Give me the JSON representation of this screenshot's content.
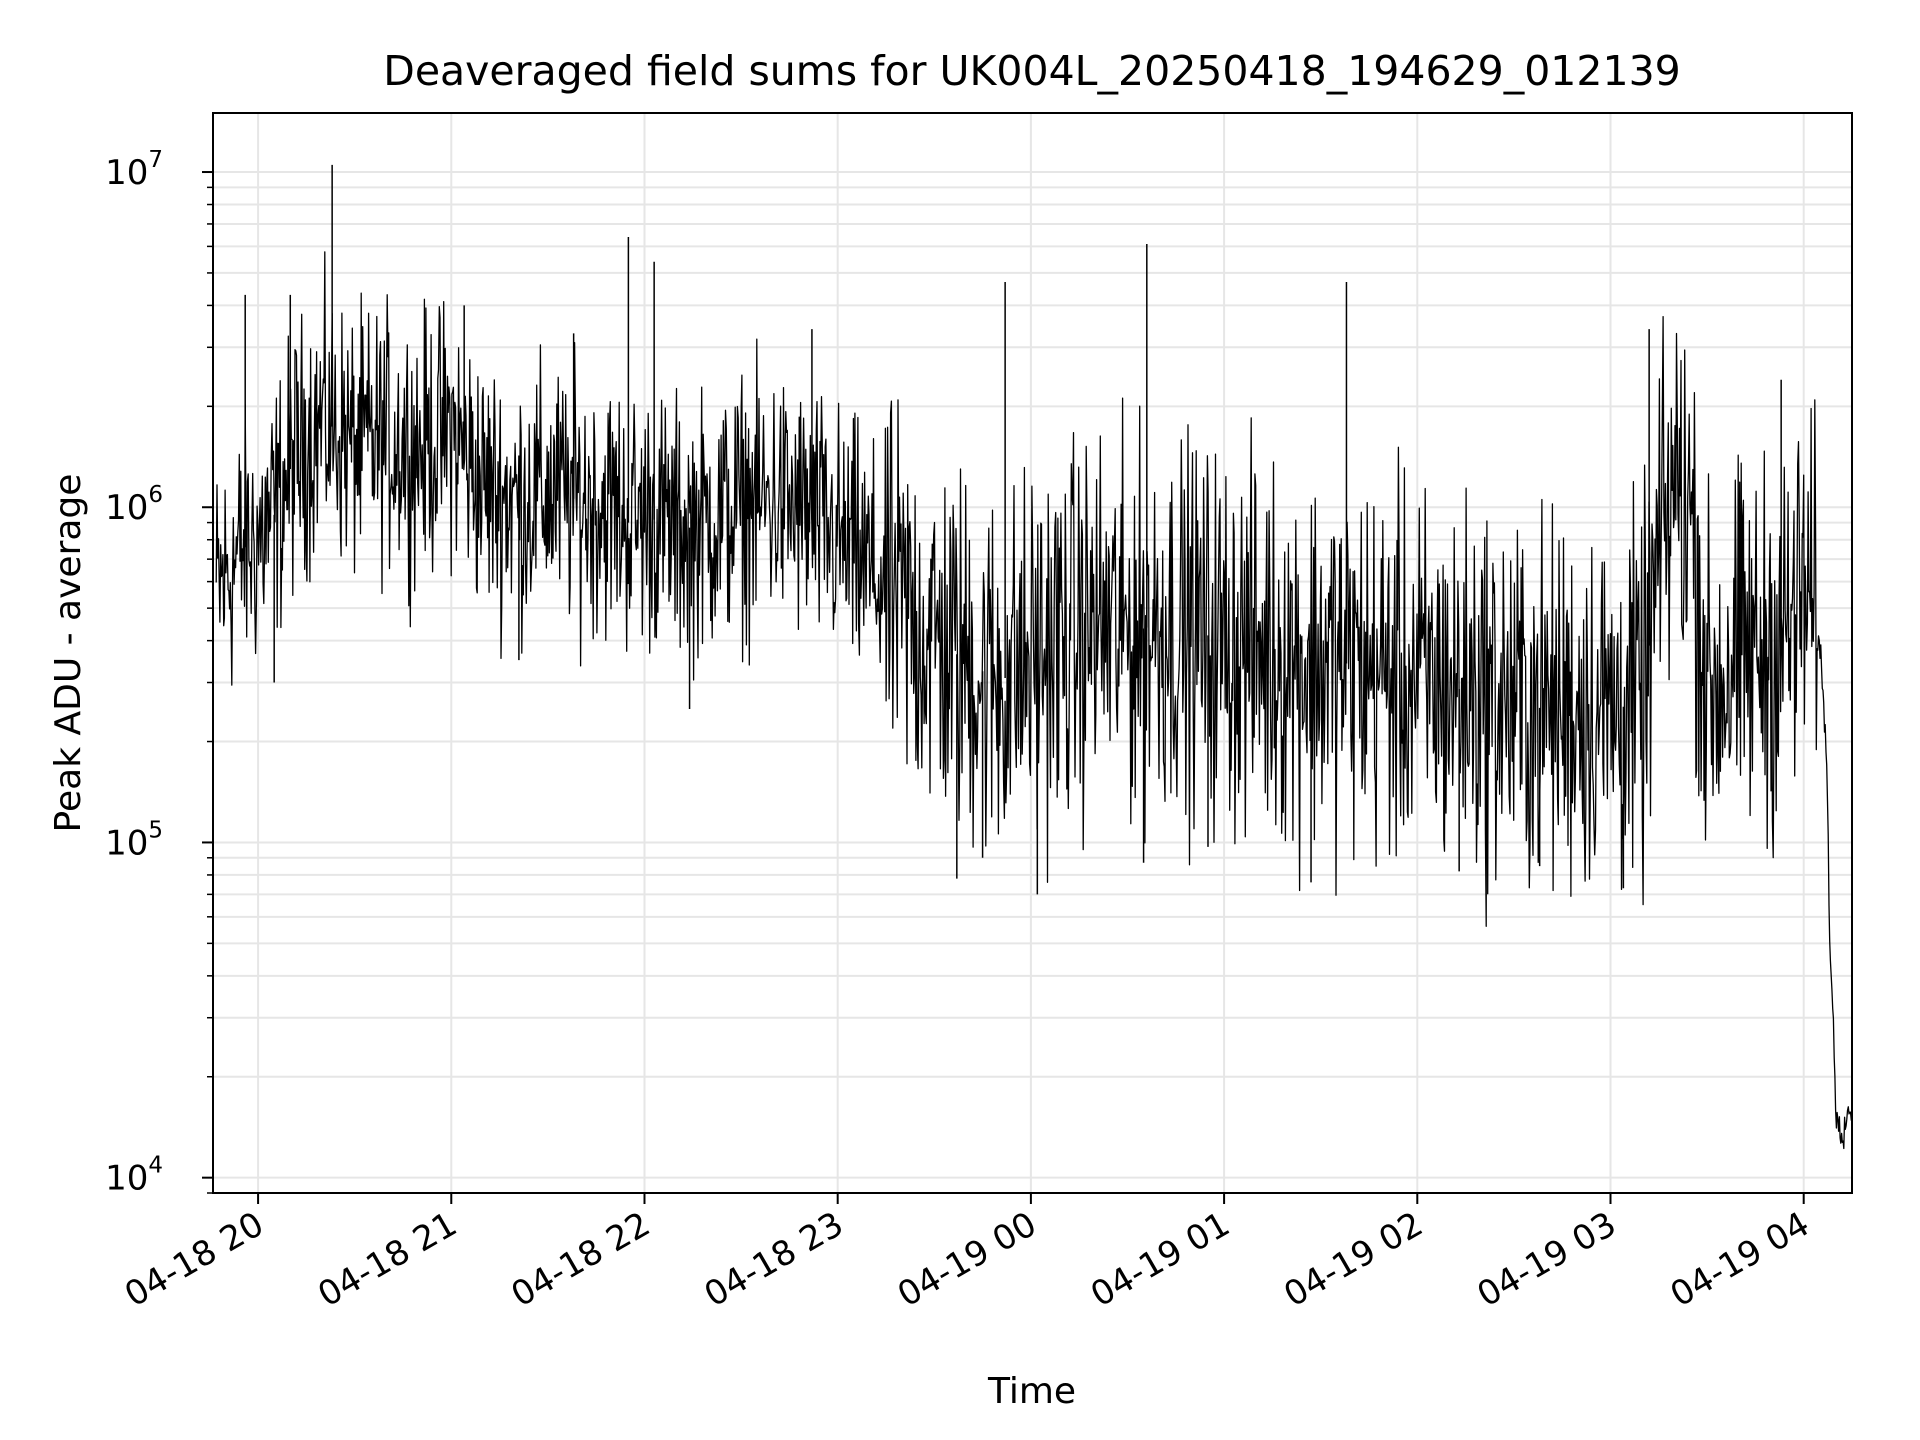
{
  "chart_data": {
    "type": "line",
    "title": "Deaveraged field sums for UK004L_20250418_194629_012139",
    "xlabel": "Time",
    "ylabel": "Peak ADU - average",
    "x_range": [
      "2025-04-18 19:46",
      "2025-04-19 04:15"
    ],
    "y_scale": "log",
    "ylim": [
      9000,
      15000000
    ],
    "grid": true,
    "line_color": "#000000",
    "x_ticks": [
      "04-18 20",
      "04-18 21",
      "04-18 22",
      "04-18 23",
      "04-19 00",
      "04-19 01",
      "04-19 02",
      "04-19 03",
      "04-19 04"
    ],
    "y_ticks": [
      {
        "value": 10000,
        "base": "10",
        "exp": "4"
      },
      {
        "value": 100000,
        "base": "10",
        "exp": "5"
      },
      {
        "value": 1000000,
        "base": "10",
        "exp": "6"
      },
      {
        "value": 10000000,
        "base": "10",
        "exp": "7"
      }
    ],
    "series": [
      {
        "x": [
          "2025-04-18 19:47",
          "2025-04-18 19:55",
          "2025-04-18 20:00",
          "2025-04-18 20:05",
          "2025-04-18 20:10",
          "2025-04-18 20:15",
          "2025-04-18 20:20",
          "2025-04-18 20:25",
          "2025-04-18 20:30",
          "2025-04-18 20:40",
          "2025-04-18 20:50",
          "2025-04-18 21:00",
          "2025-04-18 21:10",
          "2025-04-18 21:20",
          "2025-04-18 21:30",
          "2025-04-18 21:40",
          "2025-04-18 21:50",
          "2025-04-18 21:55",
          "2025-04-18 22:00",
          "2025-04-18 22:10",
          "2025-04-18 22:20",
          "2025-04-18 22:30",
          "2025-04-18 22:40",
          "2025-04-18 22:50",
          "2025-04-18 23:00",
          "2025-04-18 23:10",
          "2025-04-18 23:20",
          "2025-04-18 23:30",
          "2025-04-18 23:40",
          "2025-04-18 23:50",
          "2025-04-19 00:00",
          "2025-04-19 00:10",
          "2025-04-19 00:20",
          "2025-04-19 00:30",
          "2025-04-19 00:40",
          "2025-04-19 00:50",
          "2025-04-19 01:00",
          "2025-04-19 01:10",
          "2025-04-19 01:20",
          "2025-04-19 01:30",
          "2025-04-19 01:40",
          "2025-04-19 01:50",
          "2025-04-19 02:00",
          "2025-04-19 02:10",
          "2025-04-19 02:20",
          "2025-04-19 02:30",
          "2025-04-19 02:40",
          "2025-04-19 02:50",
          "2025-04-19 03:00",
          "2025-04-19 03:10",
          "2025-04-19 03:15",
          "2025-04-19 03:20",
          "2025-04-19 03:25",
          "2025-04-19 03:30",
          "2025-04-19 03:40",
          "2025-04-19 03:50",
          "2025-04-19 03:55",
          "2025-04-19 04:00",
          "2025-04-19 04:03",
          "2025-04-19 04:05",
          "2025-04-19 04:07",
          "2025-04-19 04:08",
          "2025-04-19 04:10",
          "2025-04-19 04:12",
          "2025-04-19 04:15"
        ],
        "y": [
          550000,
          750000,
          800000,
          950000,
          1300000,
          1600000,
          1800000,
          1700000,
          1500000,
          1600000,
          1500000,
          1700000,
          1150000,
          1050000,
          1100000,
          1050000,
          1000000,
          900000,
          950000,
          850000,
          900000,
          1000000,
          1050000,
          950000,
          800000,
          650000,
          500000,
          400000,
          350000,
          300000,
          350000,
          400000,
          450000,
          420000,
          450000,
          430000,
          400000,
          380000,
          360000,
          350000,
          340000,
          320000,
          300000,
          290000,
          280000,
          260000,
          250000,
          260000,
          250000,
          260000,
          700000,
          1200000,
          1000000,
          280000,
          350000,
          380000,
          420000,
          550000,
          500000,
          380000,
          200000,
          60000,
          16000,
          14000,
          17000
        ]
      }
    ],
    "spikes": [
      {
        "x": "2025-04-18 19:56",
        "y": 4300000
      },
      {
        "x": "2025-04-18 20:10",
        "y": 4300000
      },
      {
        "x": "2025-04-18 20:23",
        "y": 10500000
      },
      {
        "x": "2025-04-18 21:04",
        "y": 4000000
      },
      {
        "x": "2025-04-18 21:38",
        "y": 3300000
      },
      {
        "x": "2025-04-18 21:55",
        "y": 6400000
      },
      {
        "x": "2025-04-18 22:03",
        "y": 5400000
      },
      {
        "x": "2025-04-18 22:52",
        "y": 3400000
      },
      {
        "x": "2025-04-18 23:52",
        "y": 4700000
      },
      {
        "x": "2025-04-19 00:36",
        "y": 6100000
      },
      {
        "x": "2025-04-19 01:38",
        "y": 4700000
      },
      {
        "x": "2025-04-19 03:12",
        "y": 3400000
      },
      {
        "x": "2025-04-19 03:53",
        "y": 2400000
      }
    ],
    "dips": [
      {
        "x": "2025-04-18 20:05",
        "y": 300000
      },
      {
        "x": "2025-04-18 21:21",
        "y": 350000
      },
      {
        "x": "2025-04-18 22:14",
        "y": 250000
      },
      {
        "x": "2025-04-18 23:37",
        "y": 78000
      },
      {
        "x": "2025-04-18 23:45",
        "y": 90000
      },
      {
        "x": "2025-04-19 00:02",
        "y": 70000
      },
      {
        "x": "2025-04-19 00:35",
        "y": 87000
      },
      {
        "x": "2025-04-19 00:55",
        "y": 97000
      },
      {
        "x": "2025-04-19 01:27",
        "y": 76000
      },
      {
        "x": "2025-04-19 02:13",
        "y": 82000
      },
      {
        "x": "2025-04-19 02:38",
        "y": 85000
      },
      {
        "x": "2025-04-19 03:04",
        "y": 73000
      }
    ]
  }
}
